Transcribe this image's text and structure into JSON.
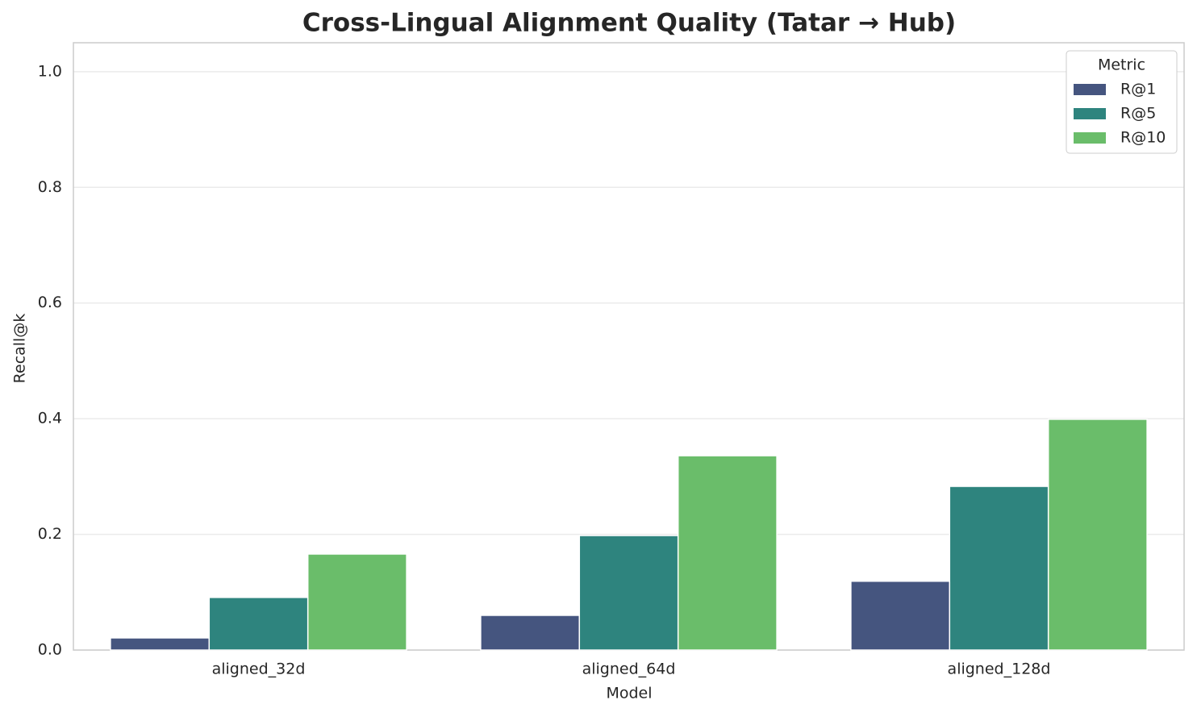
{
  "chart_data": {
    "type": "bar",
    "title": "Cross-Lingual Alignment Quality (Tatar → Hub)",
    "x_label": "Model",
    "y_label": "Recall@k",
    "categories": [
      "aligned_32d",
      "aligned_64d",
      "aligned_128d"
    ],
    "series": [
      {
        "name": "R@1",
        "color": "#45557f",
        "values": [
          0.021,
          0.06,
          0.119
        ]
      },
      {
        "name": "R@5",
        "color": "#2e847e",
        "values": [
          0.091,
          0.198,
          0.283
        ]
      },
      {
        "name": "R@10",
        "color": "#6abd6a",
        "values": [
          0.166,
          0.336,
          0.399
        ]
      }
    ],
    "ylim": [
      0,
      1.05
    ],
    "yticks": [
      {
        "value": 0,
        "label": "0.0"
      },
      0.2,
      0.4,
      0.6,
      0.8,
      {
        "value": 1,
        "label": "1.0"
      }
    ],
    "grid": true,
    "legend_title": "Metric",
    "legend_position": "upper-right"
  }
}
